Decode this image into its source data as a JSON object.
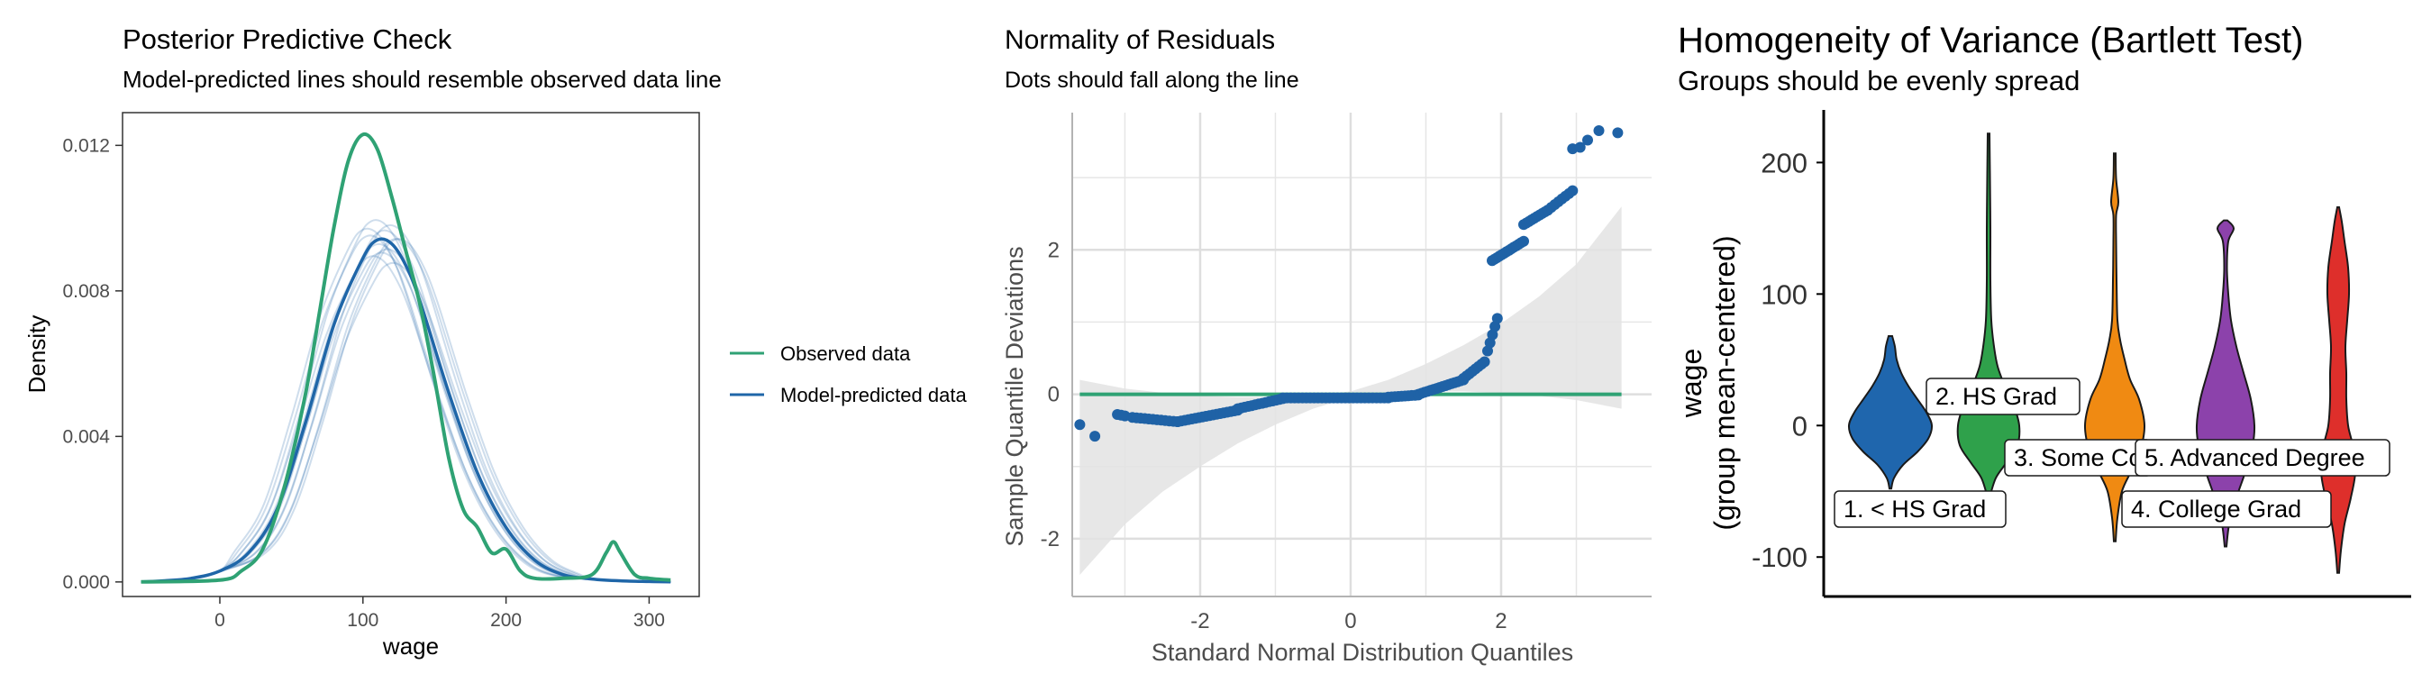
{
  "colors": {
    "observed": "#2fa274",
    "predicted": "#1f66a8",
    "qq_points": "#1f62a6",
    "qq_line": "#2fa274",
    "band": "#e3e3e3",
    "grid": "#e6e6e6",
    "violins": [
      "#1f66ad",
      "#2fa14b",
      "#f08a12",
      "#8c42ab",
      "#de2f2b"
    ]
  },
  "chart_data": [
    {
      "type": "line",
      "title": "Posterior Predictive Check",
      "subtitle": "Model-predicted lines should resemble observed data line",
      "xlabel": "wage",
      "ylabel": "Density",
      "xlim": [
        -68,
        335
      ],
      "ylim": [
        -0.0004,
        0.0129
      ],
      "xticks": [
        "0",
        "100",
        "200",
        "300"
      ],
      "xtick_values": [
        0,
        100,
        200,
        300
      ],
      "yticks": [
        "0.000",
        "0.004",
        "0.008",
        "0.012"
      ],
      "ytick_values": [
        0,
        0.004,
        0.008,
        0.012
      ],
      "grid": false,
      "legend": {
        "position": "right",
        "entries": [
          "Observed data",
          "Model-predicted data"
        ]
      },
      "series": [
        {
          "name": "Observed data",
          "x": [
            -55,
            0,
            15,
            30,
            45,
            60,
            70,
            80,
            90,
            100,
            110,
            120,
            130,
            140,
            150,
            160,
            170,
            180,
            190,
            200,
            210,
            220,
            240,
            260,
            270,
            275,
            280,
            290,
            300,
            315
          ],
          "y": [
            0.0,
            5e-05,
            0.0003,
            0.0009,
            0.0026,
            0.0052,
            0.0075,
            0.0098,
            0.0116,
            0.0123,
            0.0119,
            0.0106,
            0.0091,
            0.0076,
            0.0056,
            0.0034,
            0.002,
            0.0015,
            0.0008,
            0.0009,
            0.0003,
            0.0001,
            0.0001,
            0.0002,
            0.0008,
            0.0011,
            0.0008,
            0.0002,
            0.0001,
            5e-05
          ]
        },
        {
          "name": "Model-predicted data",
          "x": [
            -55,
            -40,
            -20,
            0,
            20,
            40,
            60,
            80,
            100,
            110,
            120,
            130,
            140,
            160,
            180,
            200,
            220,
            240,
            260,
            280,
            300,
            315
          ],
          "y": [
            0.0,
            3e-05,
            0.0001,
            0.0003,
            0.0008,
            0.002,
            0.0044,
            0.0071,
            0.0089,
            0.0094,
            0.0093,
            0.0087,
            0.0077,
            0.0052,
            0.003,
            0.0015,
            0.0006,
            0.0002,
            8e-05,
            3e-05,
            1e-05,
            0.0
          ]
        }
      ]
    },
    {
      "type": "scatter",
      "title": "Normality of Residuals",
      "subtitle": "Dots should fall along the line",
      "xlabel": "Standard Normal Distribution Quantiles",
      "ylabel": "Sample Quantile Deviations",
      "xlim": [
        -3.7,
        4.0
      ],
      "ylim": [
        -2.8,
        3.9
      ],
      "xticks": [
        "-2",
        "0",
        "2"
      ],
      "xtick_values": [
        -2,
        0,
        2
      ],
      "yticks": [
        "-2",
        "0",
        "2"
      ],
      "ytick_values": [
        -2,
        0,
        2
      ],
      "grid": true,
      "reference_line": {
        "y": 0,
        "x_range": [
          -3.6,
          3.6
        ]
      },
      "confidence_band": {
        "x": [
          -3.6,
          -3.0,
          -2.5,
          -2.0,
          -1.5,
          -1.0,
          -0.5,
          0.0,
          0.5,
          1.0,
          1.5,
          2.0,
          2.5,
          3.0,
          3.6
        ],
        "upper": [
          0.2,
          0.08,
          0.02,
          -0.02,
          -0.04,
          -0.04,
          -0.02,
          0.04,
          0.2,
          0.42,
          0.68,
          0.98,
          1.35,
          1.8,
          2.6
        ],
        "lower": [
          -2.5,
          -1.8,
          -1.35,
          -1.0,
          -0.68,
          -0.42,
          -0.2,
          -0.04,
          0.02,
          0.04,
          0.04,
          0.02,
          -0.02,
          -0.08,
          -0.2
        ]
      },
      "segments": [
        {
          "x0": -3.1,
          "x1": -3.0,
          "y0": -0.28,
          "y1": -0.3,
          "n": 3
        },
        {
          "x0": -2.9,
          "x1": -2.3,
          "y0": -0.32,
          "y1": -0.38,
          "n": 12
        },
        {
          "x0": -2.3,
          "x1": -1.5,
          "y0": -0.38,
          "y1": -0.22,
          "n": 18
        },
        {
          "x0": -1.5,
          "x1": -0.9,
          "y0": -0.2,
          "y1": -0.06,
          "n": 14
        },
        {
          "x0": -0.9,
          "x1": 0.5,
          "y0": -0.05,
          "y1": -0.05,
          "n": 28
        },
        {
          "x0": 0.5,
          "x1": 0.9,
          "y0": -0.04,
          "y1": -0.01,
          "n": 10
        },
        {
          "x0": 0.9,
          "x1": 1.5,
          "y0": 0.0,
          "y1": 0.2,
          "n": 16
        },
        {
          "x0": 1.5,
          "x1": 1.78,
          "y0": 0.22,
          "y1": 0.45,
          "n": 8
        },
        {
          "x0": 1.82,
          "x1": 1.95,
          "y0": 0.6,
          "y1": 1.05,
          "n": 5
        },
        {
          "x0": 1.88,
          "x1": 2.3,
          "y0": 1.85,
          "y1": 2.12,
          "n": 14
        },
        {
          "x0": 2.3,
          "x1": 2.62,
          "y0": 2.35,
          "y1": 2.55,
          "n": 10
        },
        {
          "x0": 2.62,
          "x1": 2.95,
          "y0": 2.55,
          "y1": 2.82,
          "n": 8
        }
      ],
      "points": [
        [
          -3.6,
          -0.42
        ],
        [
          -3.4,
          -0.58
        ],
        [
          2.95,
          3.4
        ],
        [
          3.05,
          3.42
        ],
        [
          3.15,
          3.52
        ],
        [
          3.3,
          3.65
        ],
        [
          3.55,
          3.62
        ]
      ]
    },
    {
      "type": "violin",
      "title": "Homogeneity of Variance (Bartlett Test)",
      "subtitle": "Groups should be evenly spread",
      "xlabel": "",
      "ylabel": "wage",
      "ylabel2": "(group mean-centered)",
      "ylim": [
        -130,
        240
      ],
      "yticks": [
        "-100",
        "0",
        "100",
        "200"
      ],
      "ytick_values": [
        -100,
        0,
        100,
        200
      ],
      "grid": false,
      "groups": [
        {
          "label": "1. < HS Grad",
          "profile": [
            [
              -48,
              1
            ],
            [
              -40,
              4
            ],
            [
              -30,
              14
            ],
            [
              -20,
              30
            ],
            [
              -10,
              42
            ],
            [
              0,
              46
            ],
            [
              10,
              40
            ],
            [
              20,
              30
            ],
            [
              30,
              20
            ],
            [
              40,
              12
            ],
            [
              50,
              7
            ],
            [
              60,
              5
            ],
            [
              68,
              2
            ]
          ]
        },
        {
          "label": "2. HS Grad",
          "profile": [
            [
              -55,
              1
            ],
            [
              -40,
              8
            ],
            [
              -28,
              20
            ],
            [
              -15,
              32
            ],
            [
              0,
              34
            ],
            [
              15,
              28
            ],
            [
              30,
              18
            ],
            [
              45,
              10
            ],
            [
              60,
              6
            ],
            [
              80,
              3
            ],
            [
              110,
              2
            ],
            [
              150,
              2
            ],
            [
              190,
              1.5
            ],
            [
              222,
              1
            ]
          ]
        },
        {
          "label": "3. Some College",
          "profile": [
            [
              -88,
              1
            ],
            [
              -70,
              3
            ],
            [
              -50,
              8
            ],
            [
              -35,
              18
            ],
            [
              -20,
              28
            ],
            [
              0,
              33
            ],
            [
              20,
              27
            ],
            [
              35,
              17
            ],
            [
              50,
              11
            ],
            [
              65,
              6
            ],
            [
              80,
              3
            ],
            [
              110,
              2
            ],
            [
              140,
              1.5
            ],
            [
              160,
              1.5
            ],
            [
              170,
              4
            ],
            [
              188,
              1.5
            ],
            [
              207,
              1
            ]
          ]
        },
        {
          "label": "4. College Grad",
          "profile": [
            [
              -92,
              1
            ],
            [
              -75,
              4
            ],
            [
              -55,
              12
            ],
            [
              -35,
              22
            ],
            [
              -15,
              30
            ],
            [
              0,
              32
            ],
            [
              20,
              28
            ],
            [
              40,
              20
            ],
            [
              60,
              12
            ],
            [
              80,
              6
            ],
            [
              100,
              3
            ],
            [
              120,
              1.5
            ],
            [
              140,
              3
            ],
            [
              150,
              9
            ],
            [
              156,
              2
            ]
          ]
        },
        {
          "label": "5. Advanced Degree",
          "profile": [
            [
              -112,
              1
            ],
            [
              -95,
              3
            ],
            [
              -75,
              7
            ],
            [
              -55,
              14
            ],
            [
              -35,
              19
            ],
            [
              -15,
              16
            ],
            [
              0,
              11
            ],
            [
              20,
              9
            ],
            [
              40,
              9
            ],
            [
              60,
              8
            ],
            [
              80,
              10
            ],
            [
              100,
              12
            ],
            [
              120,
              11
            ],
            [
              140,
              7
            ],
            [
              155,
              4
            ],
            [
              166,
              1
            ]
          ]
        }
      ],
      "labels": [
        "1. < HS Grad",
        "2. HS Grad",
        "3. Some College",
        "5. Advanced Degree",
        "4. College Grad"
      ]
    }
  ]
}
